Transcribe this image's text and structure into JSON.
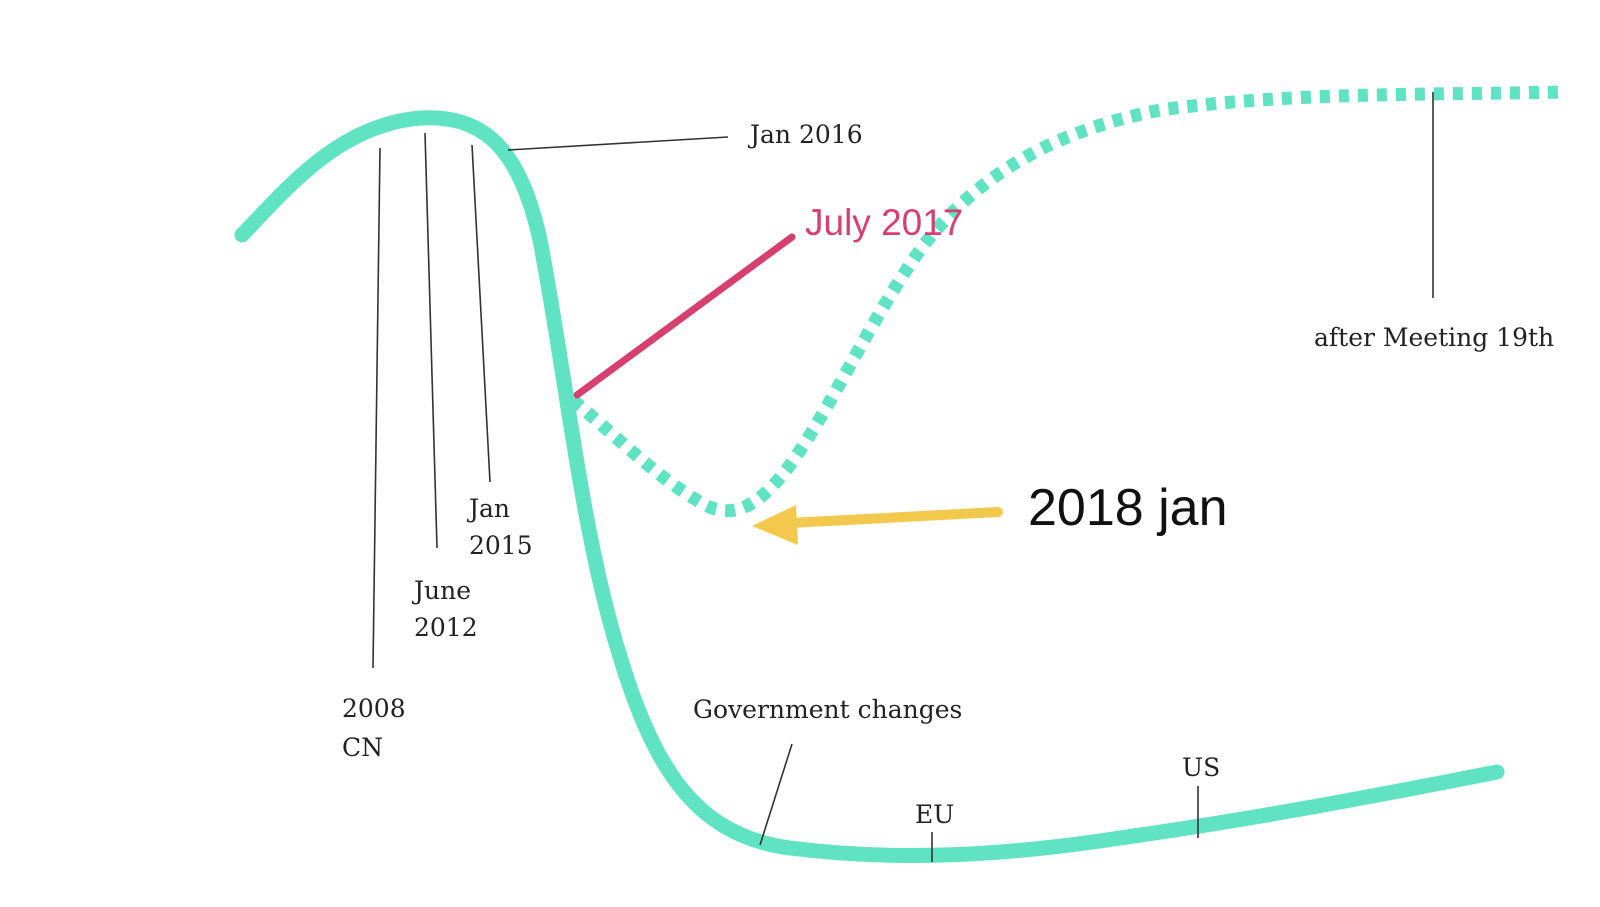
{
  "colors": {
    "curve": "#5fe3c2",
    "july_marker": "#d63f6e",
    "arrow": "#f2c94c",
    "text": "#222222"
  },
  "labels": {
    "jan_2016": "Jan 2016",
    "july_2017": "July 2017",
    "jan_2018": "2018 jan",
    "after_meeting": "after Meeting 19th",
    "jan_2015_line1": "Jan",
    "jan_2015_line2": "2015",
    "june_2012_line1": "June",
    "june_2012_line2": "2012",
    "cn_2008_line1": "2008",
    "cn_2008_line2": "CN",
    "government_changes": "Government changes",
    "eu": "EU",
    "us": "US"
  }
}
